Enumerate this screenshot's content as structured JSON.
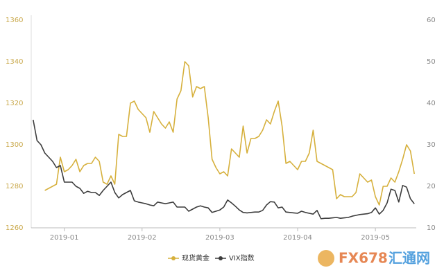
{
  "chart_data": {
    "type": "line",
    "categories": [
      null,
      null,
      null,
      null,
      null,
      null,
      null,
      null,
      "2019-01",
      null,
      null,
      null,
      null,
      null,
      null,
      null,
      null,
      null,
      null,
      null,
      null,
      null,
      null,
      null,
      null,
      null,
      null,
      null,
      "2019-02",
      null,
      null,
      null,
      null,
      null,
      null,
      null,
      null,
      null,
      null,
      null,
      null,
      null,
      null,
      null,
      null,
      null,
      null,
      null,
      "2019-03",
      null,
      null,
      null,
      null,
      null,
      null,
      null,
      null,
      null,
      null,
      null,
      null,
      null,
      null,
      null,
      null,
      null,
      null,
      null,
      "2019-04",
      null,
      null,
      null,
      null,
      null,
      null,
      null,
      null,
      null,
      null,
      null,
      null,
      null,
      null,
      null,
      null,
      null,
      null,
      null,
      "2019-05",
      null,
      null,
      null,
      null,
      null,
      null,
      null,
      null,
      null,
      null
    ],
    "series": [
      {
        "name": "现货黄金",
        "color": "#d6b03c",
        "values": [
          null,
          null,
          null,
          1278,
          1279,
          1280,
          1281,
          1294,
          1287,
          1288,
          1290,
          1293,
          1287,
          1290,
          1291,
          1291,
          1294,
          1292,
          1282,
          1281,
          1285,
          1281,
          1305,
          1304,
          1304,
          1320,
          1321,
          1317,
          1315,
          1313,
          1306,
          1316,
          1313,
          1310,
          1308,
          1311,
          1306,
          1322,
          1326,
          1340,
          1338,
          1323,
          1328,
          1327,
          1328,
          1313,
          1293,
          1289,
          1286,
          1287,
          1285,
          1298,
          1296,
          1294,
          1309,
          1296,
          1303,
          1303,
          1304,
          1307,
          1312,
          1310,
          1316,
          1321,
          1309,
          1291,
          1292,
          1290,
          1288,
          1292,
          1292,
          1296,
          1307,
          1292,
          1291,
          1290,
          1289,
          1288,
          1274,
          1276,
          1275,
          1275,
          1275,
          1277,
          1286,
          1284,
          1282,
          1283,
          1275,
          1271,
          1280,
          1280,
          1284,
          1282,
          1287,
          1293,
          1300,
          1297,
          1286
        ]
      },
      {
        "name": "VIX指数",
        "color": "#3c3c3c",
        "axis": "y2",
        "values": [
          36,
          31,
          30,
          28,
          27,
          26,
          24.5,
          25,
          21,
          21,
          21,
          20,
          19.5,
          18.3,
          18.8,
          18.5,
          18.5,
          17.8,
          19,
          20,
          21,
          18.5,
          17.2,
          18,
          18.5,
          19,
          16.5,
          16.2,
          16,
          15.8,
          15.5,
          15.3,
          16.2,
          16,
          15.8,
          16,
          16.2,
          15,
          15,
          15,
          14,
          14.5,
          15,
          15.3,
          15,
          14.8,
          13.7,
          14,
          14.3,
          15,
          16.7,
          16,
          15.2,
          14.3,
          13.7,
          13.6,
          13.7,
          13.8,
          13.8,
          14.2,
          15.5,
          16.3,
          16.2,
          14.8,
          15,
          13.8,
          13.7,
          13.6,
          13.5,
          14,
          13.7,
          13.5,
          13.3,
          14.2,
          12.2,
          12.3,
          12.3,
          12.4,
          12.5,
          12.3,
          12.4,
          12.5,
          12.8,
          13,
          13.2,
          13.3,
          13.4,
          13.7,
          14.8,
          13.3,
          14.2,
          16,
          19.3,
          19,
          16.2,
          20.2,
          19.8,
          17,
          15.8
        ]
      }
    ],
    "ylim": [
      1260,
      1360
    ],
    "yticks": [
      1260,
      1280,
      1300,
      1320,
      1340,
      1360
    ],
    "y2lim": [
      10,
      60
    ],
    "y2ticks": [
      10,
      20,
      30,
      40,
      50,
      60
    ],
    "grid": false,
    "legend": "bottom"
  },
  "watermark": {
    "brand": "FX678",
    "name": "汇通网"
  }
}
